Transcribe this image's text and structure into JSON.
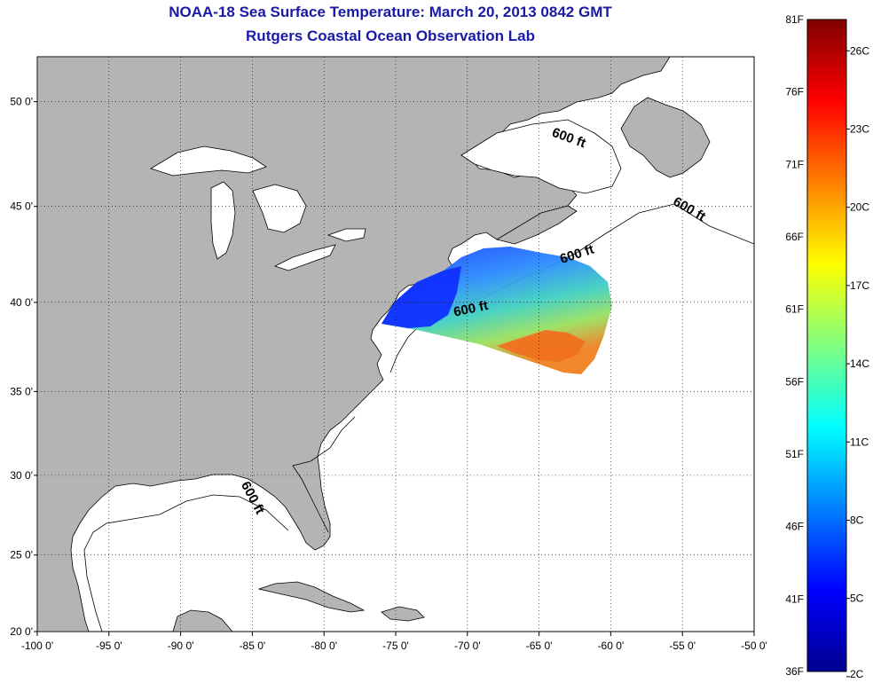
{
  "title": {
    "line1": "NOAA-18 Sea Surface Temperature:  March 20, 2013 0842 GMT",
    "line2": "Rutgers Coastal Ocean Observation Lab"
  },
  "map": {
    "lon_range": [
      -100,
      -50
    ],
    "lat_range": [
      20,
      52
    ],
    "lon_ticks": [
      {
        "value": -100,
        "label": "-100 0'"
      },
      {
        "value": -95,
        "label": "-95 0'"
      },
      {
        "value": -90,
        "label": "-90 0'"
      },
      {
        "value": -85,
        "label": "-85 0'"
      },
      {
        "value": -80,
        "label": "-80 0'"
      },
      {
        "value": -75,
        "label": "-75 0'"
      },
      {
        "value": -70,
        "label": "-70 0'"
      },
      {
        "value": -65,
        "label": "-65 0'"
      },
      {
        "value": -60,
        "label": "-60 0'"
      },
      {
        "value": -55,
        "label": "-55 0'"
      },
      {
        "value": -50,
        "label": "-50 0'"
      }
    ],
    "lat_ticks": [
      {
        "value": 20,
        "label": "20 0'"
      },
      {
        "value": 25,
        "label": "25 0'"
      },
      {
        "value": 30,
        "label": "30 0'"
      },
      {
        "value": 35,
        "label": "35 0'"
      },
      {
        "value": 40,
        "label": "40 0'"
      },
      {
        "value": 45,
        "label": "45 0'"
      },
      {
        "value": 50,
        "label": "50 0'"
      }
    ],
    "contour_labels": [
      "600 ft",
      "600 ft",
      "600 ft",
      "600 ft",
      "600 ft"
    ],
    "land_color": "#b4b4b4",
    "ocean_color": "#ffffff",
    "grid": true
  },
  "colorbar": {
    "fahrenheit_labels": [
      "81F",
      "76F",
      "71F",
      "66F",
      "61F",
      "56F",
      "51F",
      "46F",
      "41F",
      "36F"
    ],
    "celsius_labels": [
      "26C",
      "23C",
      "20C",
      "17C",
      "14C",
      "11C",
      "8C",
      "5C",
      "2C"
    ],
    "colormap": "jet"
  }
}
